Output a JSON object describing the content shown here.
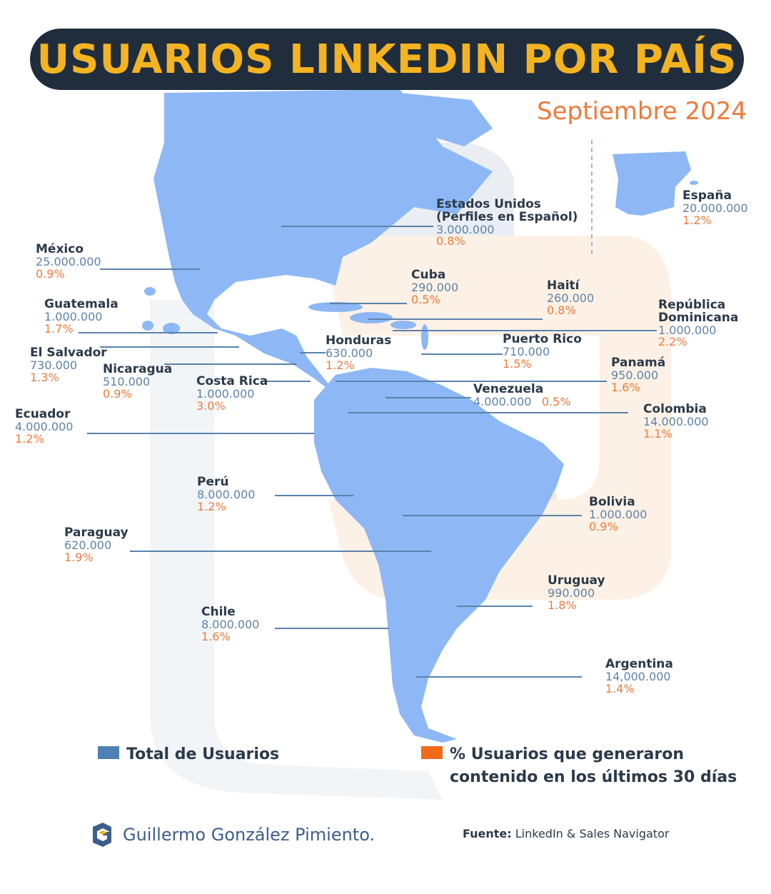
{
  "title": "USUARIOS LINKEDIN POR PAÍS",
  "subtitle": "Septiembre  2024",
  "countries": [
    {
      "name": "España",
      "users": "20.000.000",
      "pct": "1.2%"
    },
    {
      "name": "Estados Unidos",
      "name2": "(Perfiles en Español)",
      "users": "3.000.000",
      "pct": "0.8%"
    },
    {
      "name": "México",
      "users": "25.000.000",
      "pct": "0.9%"
    },
    {
      "name": "Cuba",
      "users": "290.000",
      "pct": "0.5%"
    },
    {
      "name": "Haití",
      "users": "260.000",
      "pct": "0.8%"
    },
    {
      "name": "República",
      "name2": "Dominicana",
      "users": "1.000.000",
      "pct": "2.2%"
    },
    {
      "name": "Guatemala",
      "users": "1.000.000",
      "pct": "1.7%"
    },
    {
      "name": "Honduras",
      "users": "630.000",
      "pct": "1.2%"
    },
    {
      "name": "Puerto Rico",
      "users": "710.000",
      "pct": "1.5%"
    },
    {
      "name": "El Salvador",
      "users": "730.000",
      "pct": "1.3%"
    },
    {
      "name": "Nicaragua",
      "users": "510.000",
      "pct": "0.9%"
    },
    {
      "name": "Costa Rica",
      "users": "1.000.000",
      "pct": "3.0%"
    },
    {
      "name": "Panamá",
      "users": "950.000",
      "pct": "1.6%"
    },
    {
      "name": "Venezuela",
      "users": "4.000.000",
      "pct": "0.5%"
    },
    {
      "name": "Ecuador",
      "users": "4.000.000",
      "pct": "1.2%"
    },
    {
      "name": "Colombia",
      "users": "14.000.000",
      "pct": "1.1%"
    },
    {
      "name": "Perú",
      "users": "8.000.000",
      "pct": "1.2%"
    },
    {
      "name": "Bolivia",
      "users": "1.000.000",
      "pct": "0.9%"
    },
    {
      "name": "Paraguay",
      "users": "620.000",
      "pct": "1.9%"
    },
    {
      "name": "Uruguay",
      "users": "990.000",
      "pct": "1.8%"
    },
    {
      "name": "Chile",
      "users": "8.000.000",
      "pct": "1.6%"
    },
    {
      "name": "Argentina",
      "users": "14,000.000",
      "pct": "1.4%"
    }
  ],
  "legend": {
    "total_label": "Total de Usuarios",
    "pct_label_line1": "% Usuarios que generaron",
    "pct_label_line2": "contenido en los últimos 30 días",
    "total_color": "#4f7fb3",
    "pct_color": "#f06a1a"
  },
  "footer": {
    "brand": "Guillermo González Pimiento.",
    "source_label": "Fuente:",
    "source_value": "LinkedIn & Sales Navigator"
  },
  "colors": {
    "land": "#8db8f5",
    "title_bg": "#1f2d3d",
    "title_text": "#f4b320",
    "accent_orange": "#f07a3a",
    "leader_line": "#5a82ab"
  },
  "icons": [
    "brand-logo-icon"
  ]
}
